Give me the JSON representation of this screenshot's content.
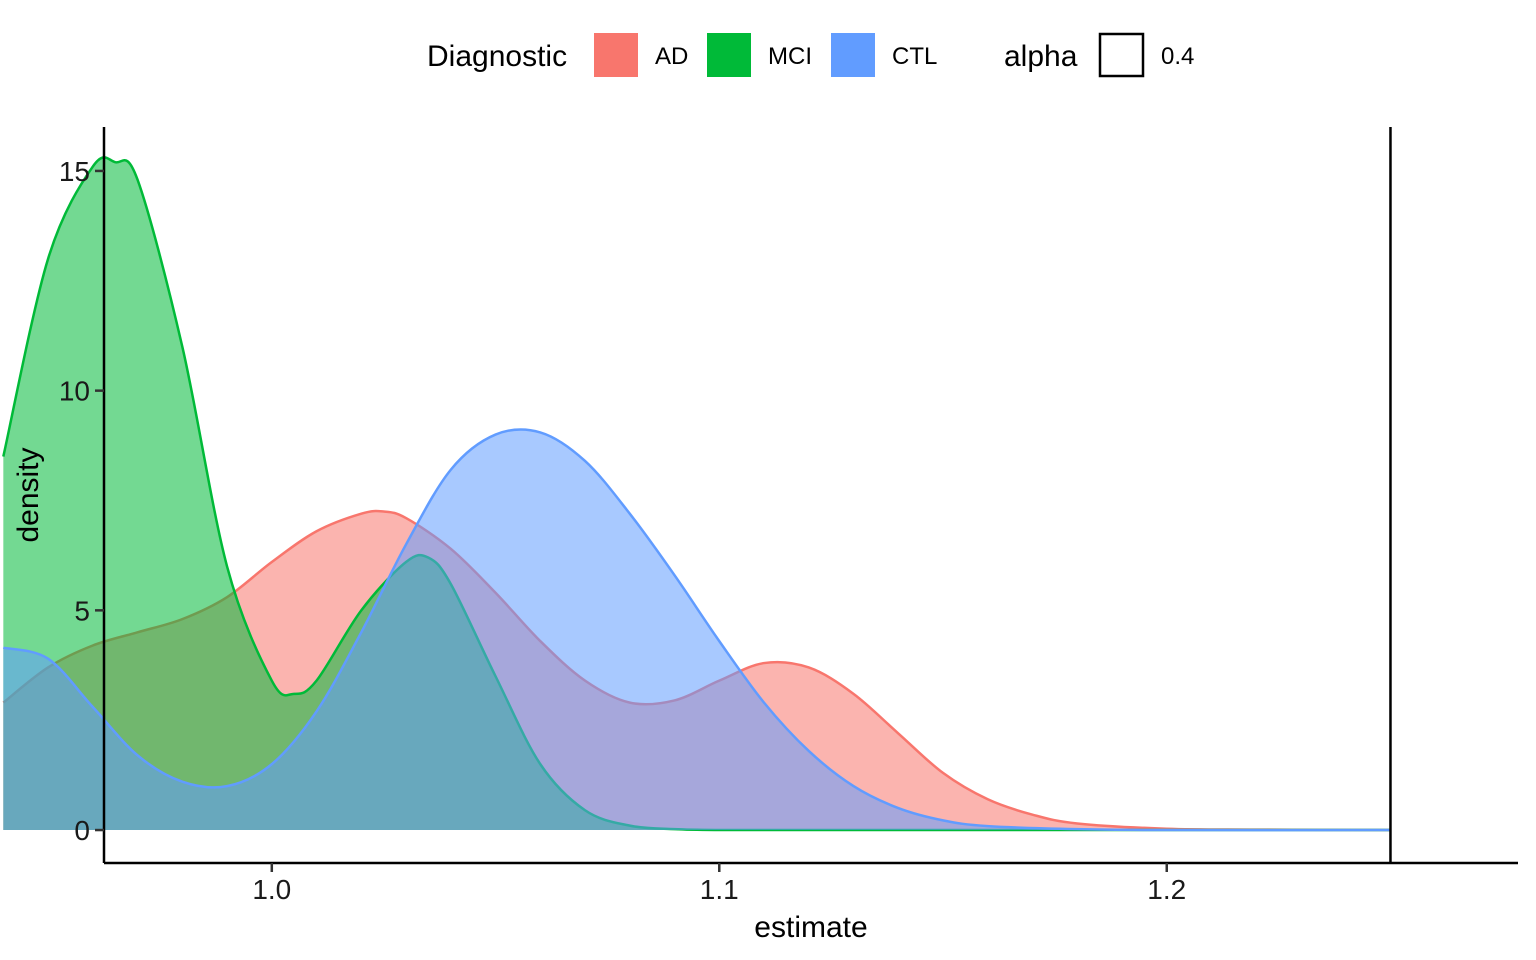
{
  "chart_data": {
    "type": "area",
    "xlabel": "estimate",
    "ylabel": "density",
    "xlim": [
      0.9625,
      1.2785
    ],
    "ylim": [
      -0.75,
      16.0
    ],
    "x_ticks": [
      1.0,
      1.1,
      1.2
    ],
    "x_tick_labels": [
      "1.0",
      "1.1",
      "1.2"
    ],
    "y_ticks": [
      0,
      5,
      10,
      15
    ],
    "y_tick_labels": [
      "0",
      "5",
      "10",
      "15"
    ],
    "vline_x": 1.25,
    "grid": false,
    "legend": {
      "position": "top",
      "fill_title": "Diagnostic",
      "alpha_title": "alpha",
      "alpha_label": "0.4"
    },
    "fill_alpha": 0.55,
    "series": [
      {
        "name": "AD",
        "color": "#F8766D",
        "x": [
          0.94,
          0.95,
          0.96,
          0.97,
          0.98,
          0.99,
          1.0,
          1.01,
          1.02,
          1.025,
          1.03,
          1.04,
          1.05,
          1.06,
          1.07,
          1.08,
          1.09,
          1.1,
          1.11,
          1.12,
          1.13,
          1.14,
          1.15,
          1.16,
          1.17,
          1.18,
          1.2,
          1.22,
          1.25
        ],
        "y": [
          2.9,
          3.7,
          4.2,
          4.5,
          4.8,
          5.3,
          6.1,
          6.8,
          7.2,
          7.25,
          7.1,
          6.4,
          5.4,
          4.3,
          3.4,
          2.9,
          2.95,
          3.4,
          3.8,
          3.7,
          3.1,
          2.2,
          1.3,
          0.7,
          0.35,
          0.15,
          0.03,
          0.01,
          0.0
        ]
      },
      {
        "name": "MCI",
        "color": "#00BA38",
        "x": [
          0.94,
          0.95,
          0.96,
          0.965,
          0.97,
          0.98,
          0.99,
          1.0,
          1.005,
          1.01,
          1.02,
          1.03,
          1.035,
          1.04,
          1.05,
          1.06,
          1.07,
          1.08,
          1.09,
          1.1,
          1.12,
          1.15,
          1.25
        ],
        "y": [
          8.5,
          13.0,
          15.1,
          15.2,
          14.8,
          11.0,
          6.0,
          3.4,
          3.1,
          3.4,
          5.0,
          6.1,
          6.2,
          5.6,
          3.5,
          1.5,
          0.45,
          0.1,
          0.02,
          0.0,
          0.0,
          0.0,
          0.0
        ]
      },
      {
        "name": "CTL",
        "color": "#619CFF",
        "x": [
          0.94,
          0.95,
          0.96,
          0.97,
          0.98,
          0.99,
          1.0,
          1.01,
          1.02,
          1.03,
          1.04,
          1.05,
          1.06,
          1.07,
          1.08,
          1.09,
          1.1,
          1.11,
          1.12,
          1.13,
          1.14,
          1.15,
          1.16,
          1.18,
          1.2,
          1.25
        ],
        "y": [
          4.15,
          3.9,
          2.8,
          1.7,
          1.1,
          1.0,
          1.5,
          2.7,
          4.5,
          6.5,
          8.2,
          9.0,
          9.05,
          8.4,
          7.2,
          5.8,
          4.3,
          2.9,
          1.8,
          1.0,
          0.5,
          0.22,
          0.09,
          0.02,
          0.0,
          0.0
        ]
      }
    ]
  }
}
